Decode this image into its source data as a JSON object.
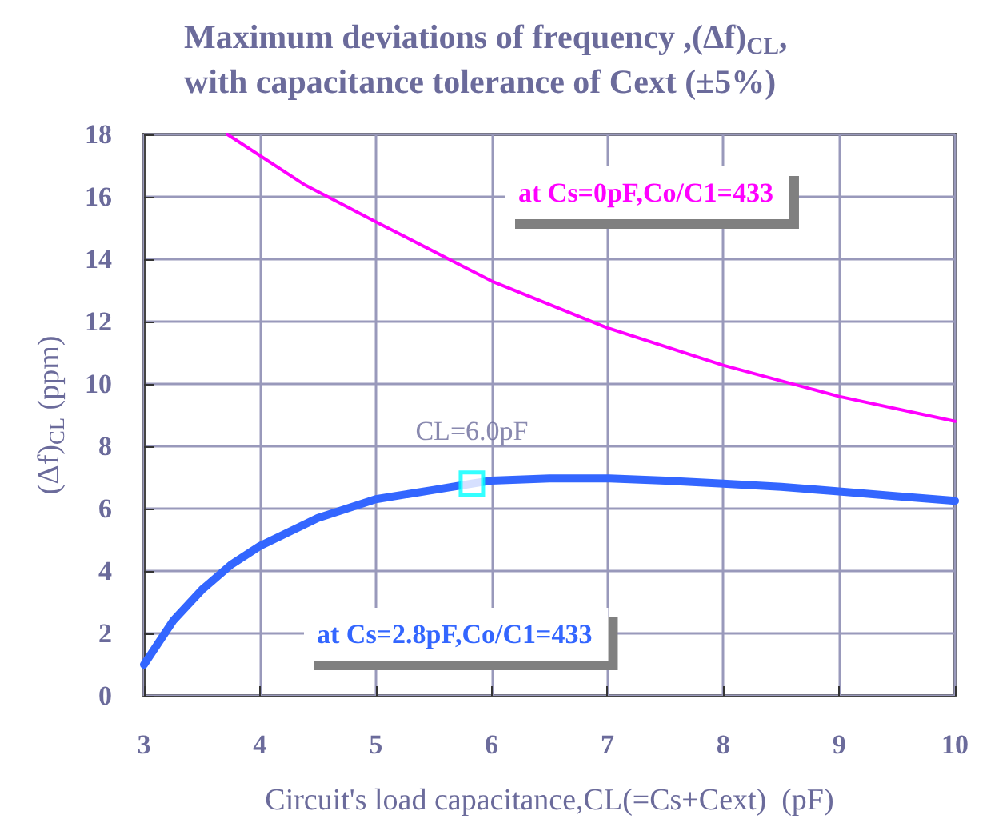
{
  "chart_data": {
    "type": "line",
    "title": "Maximum deviations of frequency ,(Δf)$_{CL}$,\nwith capacitance tolerance of Cext (±5%)",
    "xlabel": "Circuit's load capacitance,CL(=Cs+Cext)  (pF)",
    "ylabel": "(Δf)$_{CL}$ (ppm)",
    "xlim": [
      3,
      10
    ],
    "xticks": [
      3,
      4,
      5,
      6,
      7,
      8,
      9,
      10
    ],
    "ylim": [
      0,
      18
    ],
    "yticks": [
      0,
      2,
      4,
      6,
      8,
      10,
      12,
      14,
      16,
      18
    ],
    "grid": true,
    "legend": false,
    "marker": "none",
    "line_style": "solid",
    "series": [
      {
        "name": "at Cs=0pF,Co/C1=433",
        "color": "#ff00ff",
        "x": [
          3.72,
          4.38,
          5,
          6,
          7,
          8,
          9,
          10
        ],
        "values": [
          18,
          16.4,
          15.2,
          13.3,
          11.8,
          10.6,
          9.6,
          8.8
        ]
      },
      {
        "name": "at Cs=2.8pF,Co/C1=433",
        "color": "#3366ff",
        "x": [
          3,
          3.25,
          3.5,
          3.75,
          4,
          4.5,
          5,
          5.5,
          5.83,
          6,
          6.5,
          7,
          7.5,
          8,
          8.5,
          9,
          9.5,
          10
        ],
        "values": [
          1.0,
          2.4,
          3.4,
          4.2,
          4.8,
          5.7,
          6.3,
          6.6,
          6.8,
          6.9,
          6.97,
          6.97,
          6.9,
          6.8,
          6.7,
          6.55,
          6.4,
          6.25
        ]
      }
    ],
    "annotations": [
      {
        "text": "CL=6.0pF",
        "x": 5.83,
        "y": 6.8
      }
    ]
  }
}
